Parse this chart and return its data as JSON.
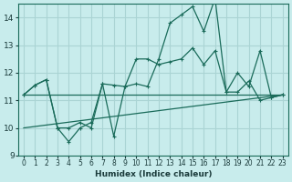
{
  "xlabel": "Humidex (Indice chaleur)",
  "ylabel": "",
  "background_color": "#c8ecec",
  "grid_color": "#aad4d4",
  "line_color": "#1a6b5a",
  "xlim": [
    -0.5,
    23.5
  ],
  "ylim": [
    9,
    14.5
  ],
  "yticks": [
    9,
    10,
    11,
    12,
    13,
    14
  ],
  "xticks": [
    0,
    1,
    2,
    3,
    4,
    5,
    6,
    7,
    8,
    9,
    10,
    11,
    12,
    13,
    14,
    15,
    16,
    17,
    18,
    19,
    20,
    21,
    22,
    23
  ],
  "line1_x": [
    0,
    1,
    2,
    3,
    4,
    5,
    6,
    7,
    8,
    9,
    10,
    11,
    12,
    13,
    14,
    15,
    16,
    17,
    18,
    19,
    20,
    21,
    22,
    23
  ],
  "line1_y": [
    11.2,
    11.55,
    11.75,
    10.0,
    9.5,
    10.0,
    10.2,
    11.6,
    9.7,
    11.5,
    11.6,
    11.5,
    12.5,
    13.8,
    14.1,
    14.4,
    13.5,
    14.7,
    11.3,
    11.3,
    11.7,
    11.0,
    11.1,
    11.2
  ],
  "line2_x": [
    0,
    1,
    2,
    3,
    4,
    5,
    6,
    7,
    8,
    9,
    10,
    11,
    12,
    13,
    14,
    15,
    16,
    17,
    18,
    19,
    20,
    21,
    22,
    23
  ],
  "line2_y": [
    11.2,
    11.55,
    11.75,
    10.0,
    10.0,
    10.2,
    10.0,
    11.6,
    11.55,
    11.5,
    12.5,
    12.5,
    12.3,
    12.4,
    12.5,
    12.9,
    12.3,
    12.8,
    11.3,
    12.0,
    11.5,
    12.8,
    11.1,
    11.2
  ],
  "line3_x": [
    0,
    23
  ],
  "line3_y": [
    11.2,
    11.2
  ],
  "line4_x": [
    0,
    23
  ],
  "line4_y": [
    10.0,
    11.2
  ]
}
